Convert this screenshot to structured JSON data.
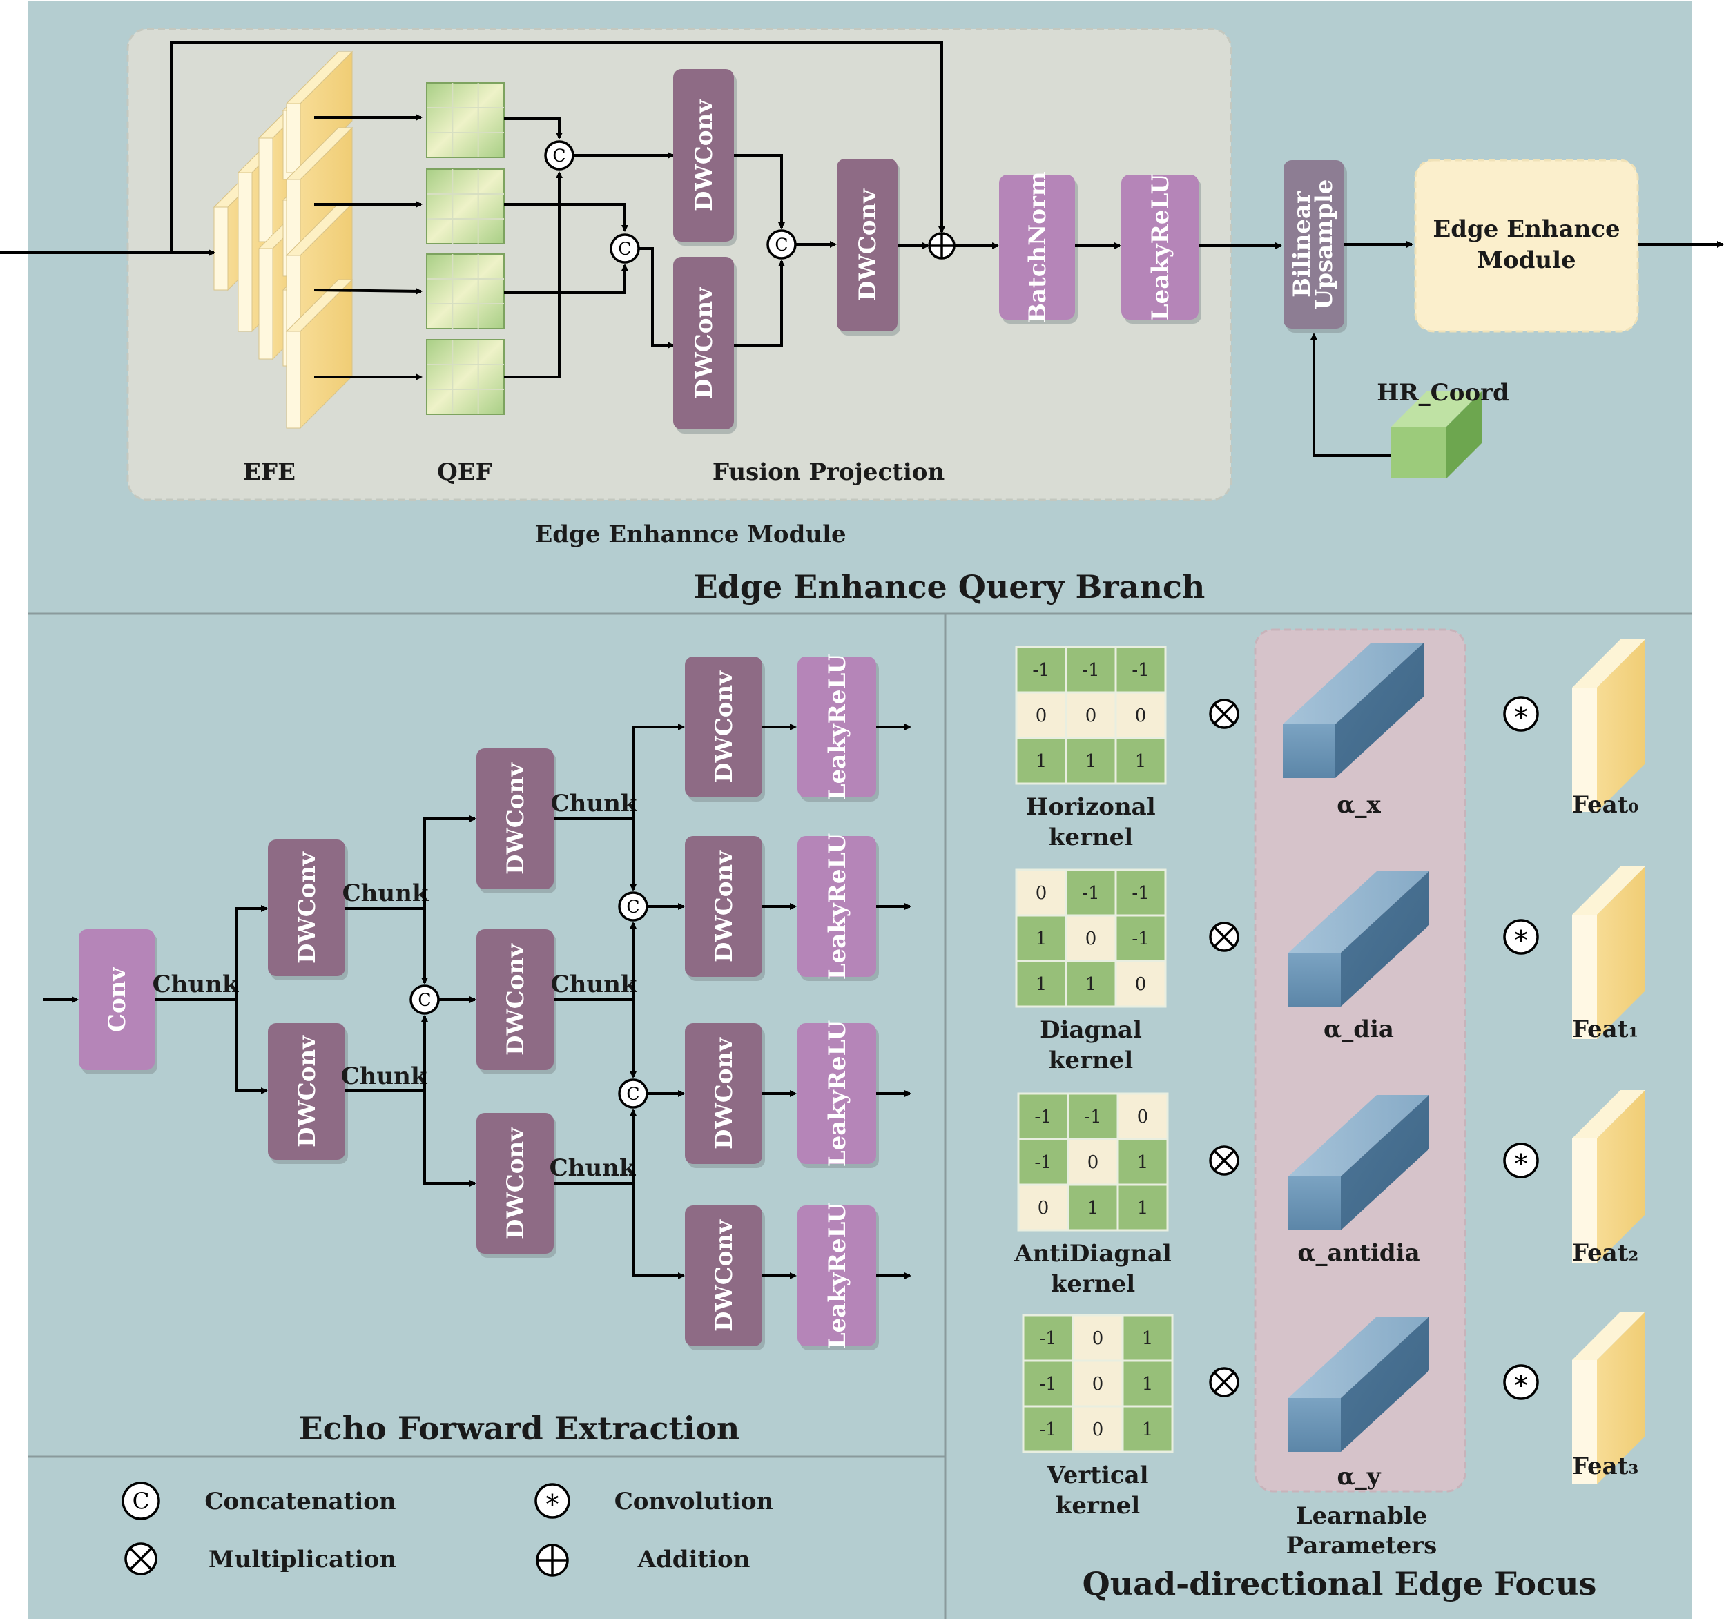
{
  "top": {
    "section_title": "Edge Enhance Query Branch",
    "module_caption": "Edge Enhannce Module",
    "efe_label": "EFE",
    "qef_label": "QEF",
    "fusion_label": "Fusion Projection",
    "dwconv_label": "DWConv",
    "batchnorm_label": "BatchNorm",
    "leakyrelu_label": "LeakyReLU",
    "upsample_label_1": "Bilinear",
    "upsample_label_2": "Upsample",
    "hr_coord_label": "HR_Coord",
    "eem_label_1": "Edge Enhance",
    "eem_label_2": "Module"
  },
  "echo": {
    "title": "Echo Forward Extraction",
    "conv_label": "Conv",
    "dwconv_label": "DWConv",
    "leakyrelu_label": "LeakyReLU",
    "chunk_label": "Chunk"
  },
  "legend": {
    "concat_symbol": "C",
    "concat_label": "Concatenation",
    "conv_symbol": "*",
    "conv_label": "Convolution",
    "mult_symbol": "⊗",
    "mult_label": "Multiplication",
    "add_symbol": "⊕",
    "add_label": "Addition"
  },
  "quad": {
    "title": "Quad-directional Edge Focus",
    "learnable_1": "Learnable",
    "learnable_2": "Parameters",
    "kernels": [
      {
        "name_1": "Horizonal",
        "name_2": "kernel",
        "alpha": "α_x",
        "feat": "Feat₀",
        "values": [
          [
            "-1",
            "-1",
            "-1"
          ],
          [
            "0",
            "0",
            "0"
          ],
          [
            "1",
            "1",
            "1"
          ]
        ]
      },
      {
        "name_1": "Diagnal",
        "name_2": "kernel",
        "alpha": "α_dia",
        "feat": "Feat₁",
        "values": [
          [
            "0",
            "-1",
            "-1"
          ],
          [
            "1",
            "0",
            "-1"
          ],
          [
            "1",
            "1",
            "0"
          ]
        ]
      },
      {
        "name_1": "AntiDiagnal",
        "name_2": "kernel",
        "alpha": "α_antidia",
        "feat": "Feat₂",
        "values": [
          [
            "-1",
            "-1",
            "0"
          ],
          [
            "-1",
            "0",
            "1"
          ],
          [
            "0",
            "1",
            "1"
          ]
        ]
      },
      {
        "name_1": "Vertical",
        "name_2": "kernel",
        "alpha": "α_y",
        "feat": "Feat₃",
        "values": [
          [
            "-1",
            "0",
            "1"
          ],
          [
            "-1",
            "0",
            "1"
          ],
          [
            "-1",
            "0",
            "1"
          ]
        ]
      }
    ]
  },
  "colors": {
    "background": "#b4cdd0",
    "dwconv": "#8e6b85",
    "purple_light": "#b585b8",
    "upsample": "#8d7d93",
    "module_panel": "#d9dcd4",
    "eem_box": "#fbefcc",
    "learnable_panel": "#d6c3ca",
    "cream": "#fbe9b4",
    "kernel_green": "#97bf79",
    "kernel_cream": "#f6eed6",
    "block_blue": "#6f99bb"
  }
}
